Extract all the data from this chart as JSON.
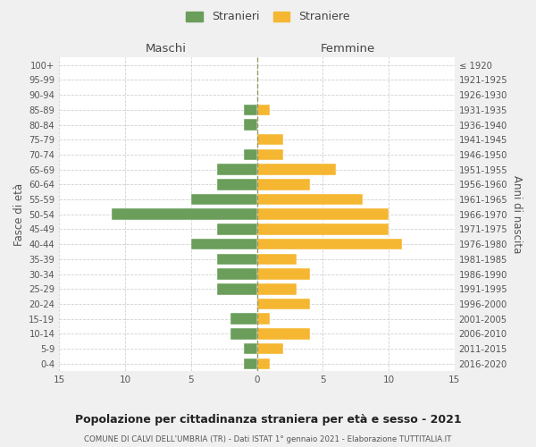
{
  "age_groups": [
    "0-4",
    "5-9",
    "10-14",
    "15-19",
    "20-24",
    "25-29",
    "30-34",
    "35-39",
    "40-44",
    "45-49",
    "50-54",
    "55-59",
    "60-64",
    "65-69",
    "70-74",
    "75-79",
    "80-84",
    "85-89",
    "90-94",
    "95-99",
    "100+"
  ],
  "birth_years": [
    "2016-2020",
    "2011-2015",
    "2006-2010",
    "2001-2005",
    "1996-2000",
    "1991-1995",
    "1986-1990",
    "1981-1985",
    "1976-1980",
    "1971-1975",
    "1966-1970",
    "1961-1965",
    "1956-1960",
    "1951-1955",
    "1946-1950",
    "1941-1945",
    "1936-1940",
    "1931-1935",
    "1926-1930",
    "1921-1925",
    "≤ 1920"
  ],
  "maschi": [
    1,
    1,
    2,
    2,
    0,
    3,
    3,
    3,
    5,
    3,
    11,
    5,
    3,
    3,
    1,
    0,
    1,
    1,
    0,
    0,
    0
  ],
  "femmine": [
    1,
    2,
    4,
    1,
    4,
    3,
    4,
    3,
    11,
    10,
    10,
    8,
    4,
    6,
    2,
    2,
    0,
    1,
    0,
    0,
    0
  ],
  "color_maschi": "#6a9e5a",
  "color_femmine": "#f5b731",
  "title": "Popolazione per cittadinanza straniera per età e sesso - 2021",
  "subtitle": "COMUNE DI CALVI DELL'UMBRIA (TR) - Dati ISTAT 1° gennaio 2021 - Elaborazione TUTTITALIA.IT",
  "xlabel_left": "Maschi",
  "xlabel_right": "Femmine",
  "ylabel_left": "Fasce di età",
  "ylabel_right": "Anni di nascita",
  "legend_stranieri": "Stranieri",
  "legend_straniere": "Straniere",
  "xlim": 15,
  "bg_color": "#f0f0f0",
  "plot_bg_color": "#ffffff",
  "grid_color": "#cccccc"
}
